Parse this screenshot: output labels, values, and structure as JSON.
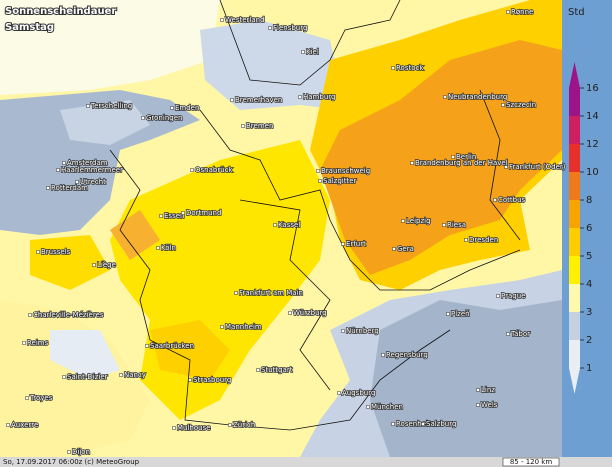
{
  "header": {
    "title": "Sonnenscheindauer",
    "subtitle": "Samstag"
  },
  "legend": {
    "unit": "Std",
    "ticks": [
      1,
      2,
      3,
      4,
      5,
      6,
      8,
      10,
      12,
      14,
      16
    ],
    "colors": [
      "#e9eef5",
      "#c4d1e2",
      "#fff9b0",
      "#fff000",
      "#ffcc00",
      "#f7a400",
      "#f07a1a",
      "#e8302a",
      "#cf1f63",
      "#9c1488"
    ]
  },
  "cities": [
    "Westerland",
    "Flensburg",
    "Kiel",
    "Rostock",
    "Neubrandenburg",
    "Szczecin",
    "Bremerhaven",
    "Hamburg",
    "Bremen",
    "Groningen",
    "Emden",
    "Terschelling",
    "Amsterdam",
    "Haarlemmermeer",
    "Utrecht",
    "Rotterdam",
    "Osnabrück",
    "Braunschweig",
    "Salzgitter",
    "Berlin",
    "Brandenburg an der Havel",
    "Frankfurt (Oder)",
    "Essen",
    "Dortmund",
    "Cottbus",
    "Kassel",
    "Leipzig",
    "Riesa",
    "Dresden",
    "Erfurt",
    "Gera",
    "Brussels",
    "Köln",
    "Liège",
    "Frankfurt am Main",
    "Prague",
    "Würzburg",
    "Charleville-Mézières",
    "Plzeň",
    "Mannheim",
    "Nürnberg",
    "Tábor",
    "Reims",
    "Saarbrücken",
    "Regensburg",
    "Nancy",
    "Stuttgart",
    "Saint-Dizier",
    "Strasbourg",
    "Troyes",
    "Augsburg",
    "Linz",
    "Wels",
    "München",
    "Auxerre",
    "Mulhouse",
    "Zürich",
    "Rosenheim",
    "Salzburg",
    "Dijon",
    "Rønne"
  ],
  "footer": {
    "timestamp": "So, 17.09.2017 06:00z (c) MeteoGroup",
    "scale": "85 - 120 km"
  }
}
